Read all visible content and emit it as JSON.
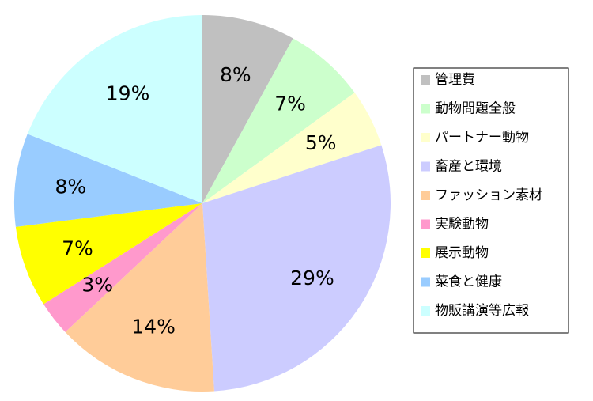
{
  "chart_data": {
    "type": "pie",
    "categories": [
      "管理費",
      "動物問題全般",
      "パートナー動物",
      "畜産と環境",
      "ファッション素材",
      "実験動物",
      "展示動物",
      "菜食と健康",
      "物販講演等広報"
    ],
    "values": [
      8,
      7,
      5,
      29,
      14,
      3,
      7,
      8,
      19
    ],
    "value_labels": [
      "8%",
      "7%",
      "5%",
      "29%",
      "14%",
      "3%",
      "7%",
      "8%",
      "19%"
    ],
    "colors": [
      "#c0c0c0",
      "#ccffcc",
      "#ffffcc",
      "#ccccff",
      "#ffcc99",
      "#ff99cc",
      "#ffff00",
      "#99ccff",
      "#ccffff"
    ],
    "start": "12 o'clock, clockwise",
    "legend_position": "right"
  }
}
